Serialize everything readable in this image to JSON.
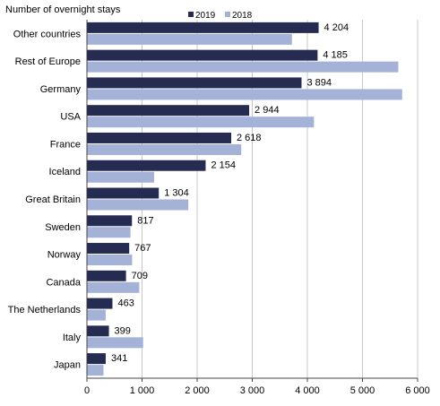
{
  "chart_data": {
    "type": "bar",
    "orientation": "horizontal",
    "ylabel": "Number of overnight stays",
    "categories": [
      "Other countries",
      "Rest of Europe",
      "Germany",
      "USA",
      "France",
      "Iceland",
      "Great Britain",
      "Sweden",
      "Norway",
      "Canada",
      "The Netherlands",
      "Italy",
      "Japan"
    ],
    "series": [
      {
        "name": "2019",
        "values": [
          4204,
          4185,
          3894,
          2944,
          2618,
          2154,
          1304,
          817,
          767,
          709,
          463,
          399,
          341
        ],
        "value_labels": [
          "4 204",
          "4 185",
          "3 894",
          "2 944",
          "2 618",
          "2 154",
          "1 304",
          "817",
          "767",
          "709",
          "463",
          "399",
          "341"
        ]
      },
      {
        "name": "2018",
        "values": [
          3720,
          5650,
          5720,
          4120,
          2800,
          1220,
          1840,
          790,
          820,
          950,
          340,
          1020,
          300
        ]
      }
    ],
    "xlim": [
      0,
      6000
    ],
    "x_ticks": [
      0,
      1000,
      2000,
      3000,
      4000,
      5000,
      6000
    ],
    "x_tick_labels": [
      "0",
      "1 000",
      "2 000",
      "3 000",
      "4 000",
      "5 000",
      "6 000"
    ],
    "grid": "vertical",
    "legend": "top",
    "colors": {
      "2019": "#262b52",
      "2018": "#a3b2d6",
      "grid": "#c8c8c8",
      "axis": "#444444"
    }
  }
}
